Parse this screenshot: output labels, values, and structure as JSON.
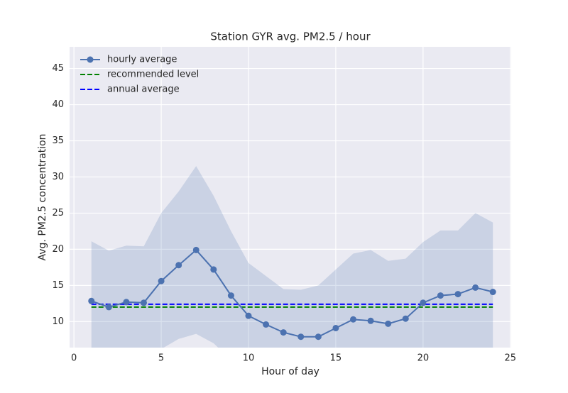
{
  "chart_data": {
    "type": "line",
    "title": "Station GYR avg. PM2.5 / hour",
    "xlabel": "Hour of day",
    "ylabel": "Avg. PM2.5 concentration",
    "x": [
      1,
      2,
      3,
      4,
      5,
      6,
      7,
      8,
      9,
      10,
      11,
      12,
      13,
      14,
      15,
      16,
      17,
      18,
      19,
      20,
      21,
      22,
      23,
      24
    ],
    "series": [
      {
        "name": "hourly average",
        "color": "#4c72b0",
        "values": [
          12.85,
          12.0,
          12.7,
          12.6,
          15.6,
          17.8,
          19.9,
          17.2,
          13.6,
          10.8,
          9.6,
          8.5,
          7.9,
          7.9,
          9.1,
          10.3,
          10.1,
          9.7,
          10.4,
          12.6,
          13.6,
          13.8,
          14.7,
          14.1
        ]
      }
    ],
    "band": {
      "color": "#4c72b0",
      "upper": [
        21.1,
        19.8,
        20.5,
        20.4,
        25.0,
        28.0,
        31.5,
        27.4,
        22.5,
        18.1,
        16.3,
        14.5,
        14.4,
        15.0,
        17.2,
        19.4,
        19.9,
        18.4,
        18.7,
        21.0,
        22.6,
        22.6,
        25.0,
        23.7
      ],
      "lower": [
        4.6,
        4.2,
        4.9,
        4.8,
        6.2,
        7.6,
        8.3,
        7.0,
        4.7,
        3.5,
        2.9,
        2.5,
        1.4,
        0.8,
        1.0,
        1.2,
        0.3,
        1.0,
        2.1,
        4.2,
        4.6,
        5.0,
        4.4,
        4.5
      ]
    },
    "hlines": [
      {
        "name": "recommended level",
        "color": "#008000",
        "value": 12
      },
      {
        "name": "annual average",
        "color": "#0000ff",
        "value": 12.4
      }
    ],
    "xlim": [
      -0.25,
      25.05
    ],
    "xticks": [
      0,
      5,
      10,
      15,
      20,
      25
    ],
    "ylim": [
      6.4,
      48
    ],
    "yticks": [
      10,
      15,
      20,
      25,
      30,
      35,
      40,
      45
    ],
    "grid": true,
    "legend": "upper left"
  }
}
